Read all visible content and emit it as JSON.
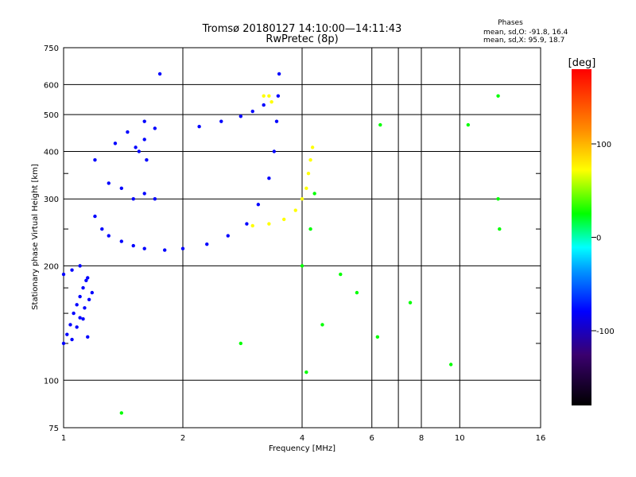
{
  "chart_data": {
    "type": "scatter",
    "title": "Tromsø 20180127 14:10:00—14:11:43",
    "subtitle": "RwPretec (8p)",
    "xlabel": "Frequency [MHz]",
    "ylabel": "Stationary phase Virtual Height [km]",
    "x_scale": "log",
    "y_scale": "log",
    "xlim": [
      1,
      16
    ],
    "ylim": [
      75,
      750
    ],
    "x_ticks": [
      1,
      2,
      4,
      6,
      8,
      10,
      16
    ],
    "x_grid": [
      1,
      2,
      4,
      6,
      7,
      8,
      10,
      16
    ],
    "y_ticks": [
      75,
      100,
      200,
      300,
      400,
      500,
      600,
      750
    ],
    "y_minor_ticks": [
      125,
      150,
      175,
      250,
      350
    ],
    "grid": true,
    "info": {
      "heading": "Phases",
      "line1": "mean, sd,O: -91.8, 16.4",
      "line2": "mean, sd,X:  95.9, 18.7"
    },
    "colorbar": {
      "label": "[deg]",
      "range": [
        -180,
        180
      ],
      "ticks": [
        100,
        0,
        -100
      ],
      "colors": [
        "#000000",
        "#3a006e",
        "#0000ff",
        "#0096ff",
        "#00ffff",
        "#00ff00",
        "#ffff00",
        "#ff8c00",
        "#ff0000"
      ]
    },
    "series": [
      {
        "trace": "O-low-E",
        "phase": -105,
        "points": [
          [
            1.0,
            125
          ],
          [
            1.02,
            132
          ],
          [
            1.04,
            140
          ],
          [
            1.06,
            150
          ],
          [
            1.08,
            158
          ],
          [
            1.1,
            166
          ],
          [
            1.12,
            175
          ],
          [
            1.14,
            183
          ],
          [
            1.05,
            128
          ],
          [
            1.08,
            138
          ],
          [
            1.1,
            146
          ],
          [
            1.13,
            155
          ],
          [
            1.16,
            163
          ],
          [
            1.15,
            130
          ],
          [
            1.12,
            145
          ],
          [
            1.18,
            170
          ],
          [
            1.0,
            190
          ],
          [
            1.05,
            195
          ],
          [
            1.1,
            200
          ],
          [
            1.15,
            186
          ]
        ]
      },
      {
        "trace": "O-F-trace",
        "phase": -95,
        "points": [
          [
            1.2,
            270
          ],
          [
            1.25,
            250
          ],
          [
            1.3,
            240
          ],
          [
            1.4,
            232
          ],
          [
            1.5,
            226
          ],
          [
            1.6,
            222
          ],
          [
            1.8,
            220
          ],
          [
            2.0,
            222
          ],
          [
            2.3,
            228
          ],
          [
            2.6,
            240
          ],
          [
            2.9,
            258
          ],
          [
            3.1,
            290
          ],
          [
            3.3,
            340
          ],
          [
            3.4,
            400
          ],
          [
            3.45,
            480
          ],
          [
            3.48,
            560
          ],
          [
            3.5,
            640
          ]
        ]
      },
      {
        "trace": "O-upper-trace",
        "phase": -90,
        "points": [
          [
            2.2,
            465
          ],
          [
            2.5,
            480
          ],
          [
            2.8,
            495
          ],
          [
            3.0,
            510
          ],
          [
            3.2,
            530
          ]
        ]
      },
      {
        "trace": "O-scatter",
        "phase": -110,
        "points": [
          [
            1.35,
            420
          ],
          [
            1.45,
            450
          ],
          [
            1.55,
            400
          ],
          [
            1.6,
            430
          ],
          [
            1.7,
            460
          ],
          [
            1.62,
            380
          ],
          [
            1.52,
            410
          ],
          [
            1.6,
            480
          ],
          [
            1.2,
            380
          ],
          [
            1.3,
            330
          ],
          [
            1.4,
            320
          ],
          [
            1.5,
            300
          ],
          [
            1.6,
            310
          ],
          [
            1.7,
            300
          ],
          [
            1.75,
            640
          ]
        ]
      },
      {
        "trace": "X-trace",
        "phase": 95,
        "points": [
          [
            3.0,
            255
          ],
          [
            3.3,
            258
          ],
          [
            3.6,
            265
          ],
          [
            3.85,
            280
          ],
          [
            4.0,
            300
          ],
          [
            4.1,
            320
          ],
          [
            4.15,
            350
          ],
          [
            4.2,
            380
          ],
          [
            4.25,
            410
          ],
          [
            3.3,
            560
          ],
          [
            3.35,
            540
          ],
          [
            3.2,
            560
          ]
        ]
      },
      {
        "trace": "scattered",
        "phase": 60,
        "points": [
          [
            4.2,
            250
          ],
          [
            4.3,
            310
          ],
          [
            4.0,
            200
          ],
          [
            5.0,
            190
          ],
          [
            5.5,
            170
          ],
          [
            6.2,
            130
          ],
          [
            7.5,
            160
          ],
          [
            12.5,
            560
          ],
          [
            12.6,
            250
          ],
          [
            12.5,
            300
          ],
          [
            10.5,
            470
          ],
          [
            6.3,
            470
          ],
          [
            9.5,
            110
          ],
          [
            4.5,
            140
          ],
          [
            4.1,
            105
          ],
          [
            2.8,
            125
          ],
          [
            1.4,
            82
          ]
        ]
      }
    ]
  }
}
